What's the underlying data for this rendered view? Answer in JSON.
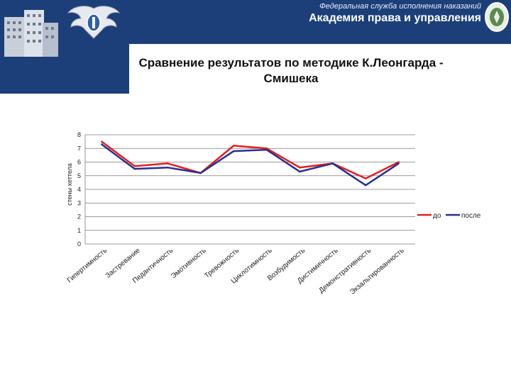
{
  "header": {
    "org_line1": "Федеральная служба исполнения наказаний",
    "org_line2": "Академия права и управления"
  },
  "slide": {
    "title_line1": "Сравнение результатов по методике К.Леонгарда -",
    "title_line2": "Смишека"
  },
  "colors": {
    "banner": "#1c3f7a",
    "series_do": "#e02020",
    "series_posle": "#2a2f8f"
  },
  "chart_data": {
    "type": "line",
    "ylabel": "стены хеттела",
    "xlabel": "",
    "ylim": [
      0,
      8
    ],
    "yticks": [
      0,
      1,
      2,
      3,
      4,
      5,
      6,
      7,
      8
    ],
    "grid": true,
    "legend": "right",
    "categories": [
      "Гипертимность",
      "Застревание",
      "Педантичность",
      "Эмотивность",
      "Тревожность",
      "Циклотимность",
      "Возбудимость",
      "Дистимичность",
      "Демонстративность",
      "Экзальтированность"
    ],
    "series": [
      {
        "name": "до",
        "color": "#e02020",
        "values": [
          7.5,
          5.7,
          5.9,
          5.2,
          7.2,
          7.0,
          5.6,
          5.9,
          4.8,
          6.0
        ]
      },
      {
        "name": "после",
        "color": "#2a2f8f",
        "values": [
          7.3,
          5.5,
          5.6,
          5.2,
          6.8,
          6.9,
          5.3,
          5.9,
          4.3,
          5.9
        ]
      }
    ]
  }
}
